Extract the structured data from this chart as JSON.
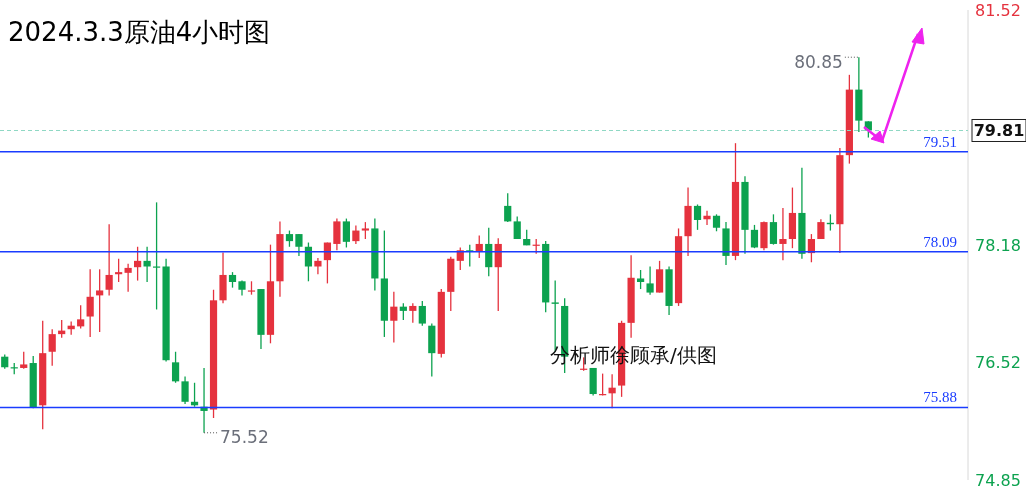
{
  "chart_data": {
    "type": "candlestick",
    "title": "2024.3.3原油4小时图",
    "categories": [
      null,
      null,
      null,
      null,
      null,
      null,
      null,
      null,
      null,
      null,
      null,
      null,
      null,
      null,
      null,
      null,
      null,
      null,
      null,
      null,
      null,
      null,
      null,
      null,
      null,
      null,
      null,
      null,
      null,
      null,
      null,
      null,
      null,
      null,
      null,
      null,
      null,
      null,
      null,
      null,
      null,
      null,
      null,
      null,
      null,
      null,
      null,
      null,
      null,
      null,
      null,
      null,
      null,
      null,
      null,
      null,
      null,
      null,
      null,
      null,
      null,
      null,
      null,
      null,
      null,
      null,
      null,
      null,
      null,
      null,
      null,
      null,
      null,
      null,
      null,
      null,
      null,
      null,
      null,
      null,
      null,
      null,
      null,
      null,
      null,
      null,
      null,
      null,
      null,
      null,
      null,
      null,
      null,
      null,
      null,
      null,
      null,
      null,
      null,
      null,
      null,
      null
    ],
    "ohlc": [
      [
        76.6,
        76.63,
        76.43,
        76.45
      ],
      [
        76.45,
        76.51,
        76.35,
        76.44
      ],
      [
        76.44,
        76.67,
        76.43,
        76.49
      ],
      [
        76.51,
        76.61,
        75.87,
        75.88
      ],
      [
        75.91,
        77.11,
        75.57,
        76.65
      ],
      [
        76.67,
        76.99,
        76.47,
        76.92
      ],
      [
        76.92,
        77.12,
        76.87,
        76.97
      ],
      [
        76.99,
        77.1,
        76.91,
        77.04
      ],
      [
        77.03,
        77.33,
        77.0,
        77.13
      ],
      [
        77.17,
        77.84,
        76.88,
        77.45
      ],
      [
        77.47,
        77.84,
        76.95,
        77.54
      ],
      [
        77.55,
        78.48,
        77.47,
        77.76
      ],
      [
        77.77,
        77.99,
        77.66,
        77.8
      ],
      [
        77.79,
        77.92,
        77.52,
        77.86
      ],
      [
        77.87,
        78.16,
        77.68,
        77.96
      ],
      [
        77.96,
        78.16,
        77.66,
        77.88
      ],
      [
        77.88,
        78.79,
        77.27,
        77.87
      ],
      [
        77.88,
        77.99,
        76.53,
        76.55
      ],
      [
        76.52,
        76.67,
        76.23,
        76.25
      ],
      [
        76.25,
        76.32,
        75.93,
        75.96
      ],
      [
        75.96,
        76.23,
        75.89,
        75.91
      ],
      [
        75.89,
        76.44,
        75.52,
        75.83
      ],
      [
        75.85,
        77.55,
        75.73,
        77.4
      ],
      [
        77.4,
        78.08,
        77.36,
        77.76
      ],
      [
        77.76,
        77.8,
        77.58,
        77.66
      ],
      [
        77.67,
        77.68,
        77.47,
        77.55
      ],
      [
        77.53,
        77.67,
        77.48,
        77.54
      ],
      [
        77.56,
        77.56,
        76.71,
        76.91
      ],
      [
        76.91,
        78.19,
        76.79,
        77.67
      ],
      [
        77.67,
        78.52,
        77.45,
        78.34
      ],
      [
        78.34,
        78.39,
        78.16,
        78.24
      ],
      [
        78.34,
        78.34,
        78.03,
        78.16
      ],
      [
        78.16,
        78.22,
        77.67,
        77.88
      ],
      [
        77.88,
        78.0,
        77.77,
        77.96
      ],
      [
        77.97,
        78.22,
        77.64,
        78.22
      ],
      [
        78.2,
        78.56,
        78.11,
        78.52
      ],
      [
        78.52,
        78.56,
        78.15,
        78.23
      ],
      [
        78.24,
        78.46,
        78.2,
        78.39
      ],
      [
        78.39,
        78.51,
        78.27,
        78.42
      ],
      [
        78.42,
        78.56,
        77.54,
        77.71
      ],
      [
        77.71,
        78.39,
        76.88,
        77.11
      ],
      [
        77.11,
        77.52,
        76.8,
        77.31
      ],
      [
        77.31,
        77.36,
        77.12,
        77.25
      ],
      [
        77.25,
        77.36,
        77.08,
        77.32
      ],
      [
        77.32,
        77.39,
        77.04,
        77.07
      ],
      [
        77.04,
        77.07,
        76.32,
        76.65
      ],
      [
        76.64,
        77.56,
        76.59,
        77.52
      ],
      [
        77.52,
        78.02,
        77.25,
        77.99
      ],
      [
        77.96,
        78.15,
        77.83,
        78.11
      ],
      [
        78.11,
        78.19,
        77.88,
        78.1
      ],
      [
        78.1,
        78.32,
        78.0,
        78.2
      ],
      [
        78.2,
        78.43,
        77.74,
        77.87
      ],
      [
        77.87,
        78.28,
        77.25,
        78.2
      ],
      [
        78.74,
        78.92,
        78.51,
        78.52
      ],
      [
        78.52,
        78.59,
        78.27,
        78.27
      ],
      [
        78.27,
        78.4,
        78.18,
        78.18
      ],
      [
        78.18,
        78.27,
        78.06,
        78.19
      ],
      [
        78.2,
        78.24,
        77.23,
        77.37
      ],
      [
        77.37,
        77.68,
        76.67,
        77.35
      ],
      [
        77.32,
        77.43,
        76.37,
        76.6
      ],
      null,
      [
        76.42,
        76.59,
        76.4,
        76.43
      ],
      [
        76.44,
        76.44,
        76.05,
        76.07
      ],
      [
        76.06,
        76.36,
        76.05,
        76.07
      ],
      [
        76.08,
        76.35,
        75.87,
        76.16
      ],
      [
        76.19,
        77.11,
        76.03,
        77.08
      ],
      [
        77.08,
        78.04,
        76.87,
        77.72
      ],
      [
        77.71,
        77.83,
        77.56,
        77.66
      ],
      [
        77.64,
        77.88,
        77.48,
        77.51
      ],
      [
        77.51,
        77.96,
        77.51,
        77.84
      ],
      [
        77.84,
        77.88,
        77.19,
        77.32
      ],
      [
        77.36,
        78.42,
        77.32,
        78.31
      ],
      [
        78.31,
        79.0,
        78.03,
        78.74
      ],
      [
        78.74,
        78.76,
        78.4,
        78.54
      ],
      [
        78.55,
        78.67,
        78.47,
        78.6
      ],
      [
        78.6,
        78.62,
        78.38,
        78.43
      ],
      [
        78.42,
        78.51,
        77.9,
        78.03
      ],
      [
        78.03,
        79.63,
        77.97,
        79.08
      ],
      [
        79.08,
        79.16,
        78.06,
        78.4
      ],
      [
        78.4,
        78.47,
        78.14,
        78.15
      ],
      [
        78.14,
        78.52,
        78.11,
        78.51
      ],
      [
        78.51,
        78.62,
        78.19,
        78.2
      ],
      [
        78.2,
        78.71,
        77.97,
        78.27
      ],
      [
        78.27,
        79.0,
        78.14,
        78.64
      ],
      [
        78.64,
        79.28,
        77.99,
        78.06
      ],
      [
        78.07,
        78.34,
        77.94,
        78.27
      ],
      [
        78.27,
        78.55,
        78.27,
        78.51
      ],
      [
        78.5,
        78.62,
        78.39,
        78.48
      ],
      [
        78.48,
        79.56,
        78.07,
        79.46
      ],
      [
        79.46,
        80.6,
        79.34,
        80.39
      ],
      [
        80.39,
        80.85,
        79.79,
        79.95
      ],
      [
        79.94,
        79.94,
        79.71,
        79.81
      ],
      null,
      null,
      null,
      null,
      null,
      null,
      null,
      null,
      null,
      null
    ],
    "colors": [
      "#0ca24f",
      "#0ca24f",
      "#e5323e",
      "#0ca24f",
      "#e5323e",
      "#e5323e",
      "#e5323e",
      "#e5323e",
      "#e5323e",
      "#e5323e",
      "#e5323e",
      "#e5323e",
      "#e5323e",
      "#e5323e",
      "#e5323e",
      "#0ca24f",
      "#0ca24f",
      "#0ca24f",
      "#0ca24f",
      "#0ca24f",
      "#0ca24f",
      "#0ca24f",
      "#e5323e",
      "#e5323e",
      "#0ca24f",
      "#0ca24f",
      "#e5323e",
      "#0ca24f",
      "#e5323e",
      "#e5323e",
      "#0ca24f",
      "#0ca24f",
      "#0ca24f",
      "#e5323e",
      "#e5323e",
      "#e5323e",
      "#0ca24f",
      "#e5323e",
      "#e5323e",
      "#0ca24f",
      "#0ca24f",
      "#e5323e",
      "#0ca24f",
      "#e5323e",
      "#0ca24f",
      "#0ca24f",
      "#e5323e",
      "#e5323e",
      "#e5323e",
      "#0ca24f",
      "#e5323e",
      "#0ca24f",
      "#e5323e",
      "#0ca24f",
      "#0ca24f",
      "#0ca24f",
      "#e5323e",
      "#0ca24f",
      "#0ca24f",
      "#0ca24f",
      null,
      "#e5323e",
      "#0ca24f",
      "#e5323e",
      "#e5323e",
      "#e5323e",
      "#e5323e",
      "#0ca24f",
      "#0ca24f",
      "#e5323e",
      "#0ca24f",
      "#e5323e",
      "#e5323e",
      "#0ca24f",
      "#e5323e",
      "#0ca24f",
      "#0ca24f",
      "#e5323e",
      "#0ca24f",
      "#0ca24f",
      "#e5323e",
      "#0ca24f",
      "#e5323e",
      "#e5323e",
      "#0ca24f",
      "#e5323e",
      "#e5323e",
      "#0ca24f",
      "#e5323e",
      "#e5323e",
      "#0ca24f",
      "#0ca24f",
      null,
      null,
      null,
      null,
      null,
      null,
      null,
      null,
      null,
      null
    ],
    "ylim": [
      74.85,
      81.52
    ],
    "yticks": [
      81.52,
      78.18,
      76.52,
      74.85
    ],
    "ref_lines": [
      {
        "axis": "y",
        "value": 79.51,
        "label": "79.51",
        "color": "#1a3cff",
        "line_style": "solid"
      },
      {
        "axis": "y",
        "value": 78.09,
        "label": "78.09",
        "color": "#1a3cff",
        "line_style": "solid"
      },
      {
        "axis": "y",
        "value": 75.88,
        "label": "75.88",
        "color": "#1a3cff",
        "line_style": "solid"
      },
      {
        "axis": "y",
        "value": 79.81,
        "label": "79.81",
        "color": "#8fd8c4",
        "line_style": "dashed"
      }
    ],
    "annotations": [
      "80.85",
      "75.52",
      "分析师徐顾承/供图"
    ],
    "grid": false
  }
}
